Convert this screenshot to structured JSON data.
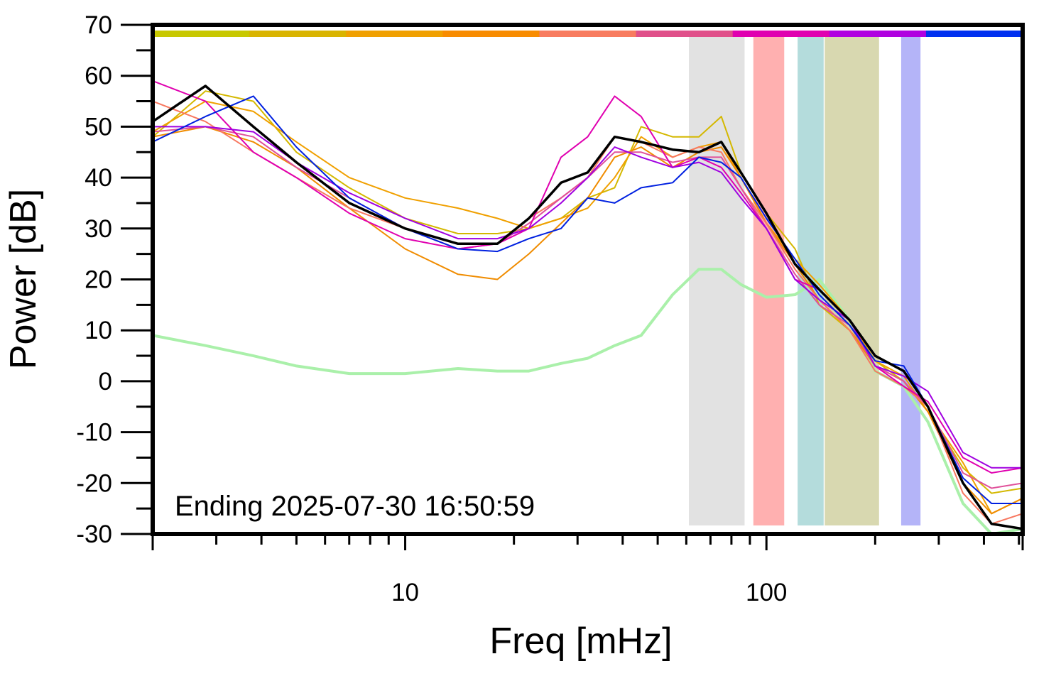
{
  "chart_data": {
    "type": "line",
    "log_x": true,
    "xlabel": "Freq [mHz]",
    "ylabel": "Power [dB]",
    "annotation": "Ending 2025-07-30 16:50:59",
    "xlim": [
      2,
      512
    ],
    "xticks": [
      10,
      100
    ],
    "xminorticks": [
      3,
      4,
      5,
      6,
      7,
      8,
      9,
      20,
      30,
      40,
      50,
      60,
      70,
      80,
      90,
      200,
      300,
      400,
      500
    ],
    "ylim": [
      -30,
      70
    ],
    "yticks": [
      -30,
      -20,
      -10,
      0,
      10,
      20,
      30,
      40,
      50,
      60,
      70
    ],
    "yminorticks": [
      -25,
      -15,
      -5,
      5,
      15,
      25,
      35,
      45,
      55,
      65
    ],
    "colorbar": [
      "#c8c800",
      "#d9b400",
      "#f0a000",
      "#f88c00",
      "#f87c60",
      "#e0508a",
      "#e000b0",
      "#b000e0",
      "#0030f0"
    ],
    "bands": [
      {
        "x0": 61,
        "x1": 87,
        "color": "#e2e2e2"
      },
      {
        "x0": 92,
        "x1": 112,
        "color": "#ffb0b0"
      },
      {
        "x0": 122,
        "x1": 144,
        "color": "#b4dcdc"
      },
      {
        "x0": 145,
        "x1": 205,
        "color": "#d8d8b0"
      },
      {
        "x0": 236,
        "x1": 267,
        "color": "#b4b4f8"
      }
    ],
    "x": [
      2,
      2.8,
      3.8,
      5,
      7,
      10,
      14,
      18,
      22,
      27,
      32,
      38,
      45,
      55,
      65,
      75,
      85,
      100,
      120,
      140,
      170,
      200,
      240,
      280,
      350,
      420,
      512
    ],
    "series": [
      {
        "color": "#aaf0aa",
        "width": 4,
        "values": [
          9,
          7,
          5,
          3,
          1.5,
          1.5,
          2.5,
          2,
          2,
          3.5,
          4.5,
          7,
          9,
          17,
          22,
          22,
          19,
          16.5,
          17,
          20,
          12,
          2,
          -1,
          -8,
          -24,
          -30,
          -29
        ]
      },
      {
        "color": "#d4b800",
        "width": 2,
        "values": [
          48,
          57,
          55,
          45,
          38,
          32,
          29,
          29,
          30,
          32,
          36,
          38,
          50,
          48,
          48,
          52,
          41,
          33,
          26,
          15,
          10,
          4,
          0,
          -6,
          -17,
          -22,
          -21
        ]
      },
      {
        "color": "#f0a000",
        "width": 2,
        "values": [
          49,
          55,
          53,
          47,
          40,
          36,
          34,
          32,
          30,
          32,
          34,
          40,
          48,
          44,
          46,
          47,
          40,
          31,
          24,
          19,
          12,
          4,
          1,
          -6,
          -16,
          -26,
          -23
        ]
      },
      {
        "color": "#f08c00",
        "width": 2,
        "values": [
          48,
          50,
          47,
          42,
          34,
          26,
          21,
          20,
          25,
          31,
          36,
          44,
          46,
          42,
          45,
          46,
          40,
          31,
          23,
          16,
          10,
          3,
          0,
          -6,
          -20,
          -26,
          -23
        ]
      },
      {
        "color": "#f87860",
        "width": 2,
        "values": [
          55,
          51,
          45,
          40,
          34,
          30,
          27,
          27,
          32,
          36,
          40,
          48,
          47,
          44,
          46,
          45,
          38,
          31,
          22,
          16,
          10,
          2,
          -1,
          -5,
          -22,
          -28,
          -26
        ]
      },
      {
        "color": "#e0509a",
        "width": 2,
        "values": [
          49,
          50,
          48,
          42,
          36,
          30,
          26,
          27,
          31,
          36,
          40,
          45,
          45,
          43,
          44,
          44,
          38,
          30,
          21,
          15,
          11,
          3,
          0,
          -5,
          -18,
          -21,
          -20
        ]
      },
      {
        "color": "#e000b0",
        "width": 2,
        "values": [
          59,
          55,
          45,
          40,
          33,
          28,
          26,
          27,
          30,
          44,
          48,
          56,
          52,
          42,
          44,
          42,
          37,
          30,
          20,
          18,
          12,
          3,
          -1,
          -4,
          -15,
          -18,
          -17
        ]
      },
      {
        "color": "#a000e0",
        "width": 2,
        "values": [
          50,
          50,
          49,
          43,
          37,
          32,
          28,
          28,
          30,
          35,
          40,
          46,
          44,
          42,
          43,
          41,
          36,
          30,
          20,
          16,
          12,
          3,
          1,
          -2,
          -14,
          -17,
          -17
        ]
      },
      {
        "color": "#0020e0",
        "width": 2,
        "values": [
          47,
          52,
          56,
          46,
          36,
          30,
          26,
          25.5,
          28,
          30,
          36,
          35,
          38,
          39,
          44,
          43,
          40,
          32,
          24,
          17,
          11,
          4,
          3,
          -5,
          -19,
          -24,
          -24
        ]
      },
      {
        "color": "#000000",
        "width": 3.5,
        "values": [
          51,
          58,
          50,
          43,
          35,
          30,
          27,
          27,
          32,
          39,
          41,
          48,
          47,
          45.5,
          45,
          47,
          41,
          33,
          23,
          18,
          12,
          5,
          2,
          -5,
          -20,
          -28,
          -29
        ]
      }
    ]
  }
}
